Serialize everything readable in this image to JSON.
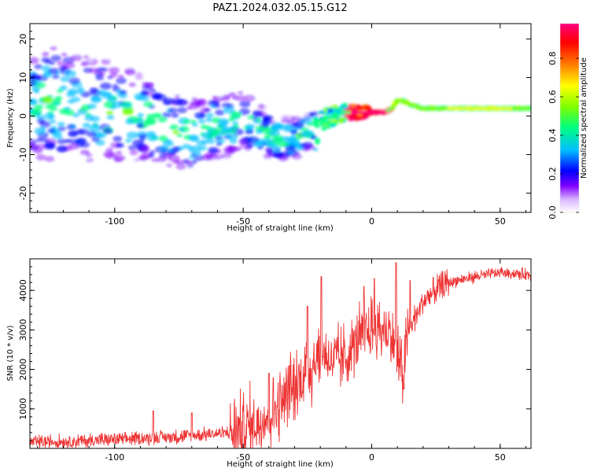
{
  "title": "PAZ1.2024.032.05.15.G12",
  "chart_data": [
    {
      "type": "heatmap",
      "xlabel": "Height of straight line (km)",
      "ylabel": "Frequency (Hz)",
      "xlim": [
        -133,
        62
      ],
      "ylim": [
        -25,
        24
      ],
      "x_ticks": [
        -100,
        -50,
        0,
        50
      ],
      "y_ticks": [
        -20,
        -10,
        0,
        10,
        20
      ],
      "ridge": {
        "x": [
          -133,
          -120,
          -110,
          -100,
          -90,
          -80,
          -70,
          -60,
          -55,
          -50,
          -45,
          -40,
          -35,
          -30,
          -25,
          -20,
          -15,
          -10,
          -5,
          0,
          5,
          8,
          10,
          12,
          15,
          20,
          30,
          40,
          50,
          62
        ],
        "y": [
          3,
          3,
          2,
          1,
          0,
          -3,
          -5,
          -3,
          -2,
          -1,
          -3,
          -5,
          -6,
          -6,
          -4,
          -1,
          0,
          1,
          1,
          1,
          1,
          2,
          4,
          4,
          3,
          2,
          2,
          2,
          2,
          2
        ]
      },
      "colorbar": {
        "label": "Normalized spectral amplitude",
        "ticks": [
          0.0,
          0.2,
          0.4,
          0.6,
          0.8
        ],
        "range": [
          0,
          0.98
        ],
        "colors": [
          "#ffffff",
          "#7f00ff",
          "#0000ff",
          "#00bfff",
          "#00ff80",
          "#80ff00",
          "#ffff00",
          "#ff8000",
          "#ff0000",
          "#ff0080"
        ]
      }
    },
    {
      "type": "line",
      "xlabel": "Height of straight line (km)",
      "ylabel": "SNR (10 * v/v)",
      "xlim": [
        -133,
        62
      ],
      "ylim": [
        0,
        4800
      ],
      "x_ticks": [
        -100,
        -50,
        0,
        50
      ],
      "y_ticks": [
        1000,
        2000,
        3000,
        4000
      ],
      "color": "#ee3333",
      "trend": {
        "x": [
          -133,
          -110,
          -90,
          -75,
          -65,
          -55,
          -45,
          -40,
          -35,
          -30,
          -25,
          -22,
          -20,
          -17,
          -15,
          -10,
          -5,
          0,
          5,
          8,
          10,
          12,
          13,
          15,
          20,
          25,
          30,
          40,
          50,
          62
        ],
        "y": [
          150,
          200,
          250,
          300,
          350,
          400,
          600,
          900,
          1200,
          1500,
          2000,
          2200,
          2400,
          2300,
          2200,
          2300,
          2800,
          3000,
          3000,
          2800,
          2400,
          1800,
          2400,
          3100,
          3700,
          4000,
          4200,
          4350,
          4450,
          4400
        ]
      },
      "spikes": [
        {
          "x": -19.6,
          "y": 4350
        },
        {
          "x": -25,
          "y": 3600
        },
        {
          "x": 9.5,
          "y": 4700
        },
        {
          "x": 12.5,
          "y": 1500
        },
        {
          "x": -3,
          "y": 4100
        },
        {
          "x": 1,
          "y": 4300
        },
        {
          "x": 15,
          "y": 4250
        },
        {
          "x": -85,
          "y": 950
        },
        {
          "x": -70,
          "y": 900
        },
        {
          "x": -40,
          "y": 1900
        },
        {
          "x": -32,
          "y": 2100
        }
      ]
    }
  ]
}
